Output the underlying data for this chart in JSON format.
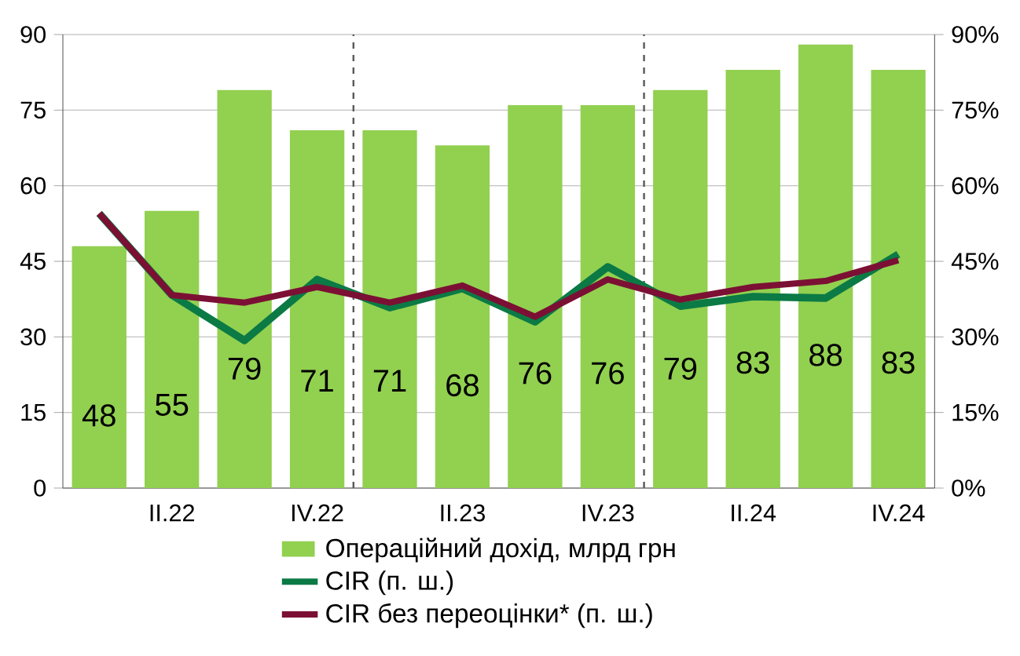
{
  "chart_data": {
    "type": "bar",
    "categories": [
      null,
      "II.22",
      null,
      "IV.22",
      null,
      "II.23",
      null,
      "IV.23",
      null,
      "II.24",
      null,
      "IV.24"
    ],
    "series": [
      {
        "name": "Операційний дохід, млрд грн",
        "color": "#92d050",
        "values": [
          48,
          55,
          79,
          71,
          71,
          68,
          76,
          76,
          79,
          83,
          88,
          83
        ],
        "value_labels": [
          "48",
          "55",
          "79",
          "71",
          "71",
          "68",
          "76",
          "76",
          "79",
          "83",
          "88",
          "83"
        ]
      },
      {
        "name": "CIR (п. ш.)",
        "type": "line",
        "axis": "y2",
        "color": "#0b7a45",
        "values": [
          54.5,
          38.3,
          29.3,
          41.4,
          35.8,
          39.6,
          33,
          43.9,
          36.1,
          38,
          37.7,
          46.4
        ]
      },
      {
        "name": "CIR без переоцінки* (п. ш.)",
        "type": "line",
        "axis": "y2",
        "color": "#7b1034",
        "values": [
          54.5,
          38.3,
          36.8,
          39.9,
          36.8,
          40.2,
          34,
          41.4,
          37.4,
          39.9,
          41.1,
          45.2
        ]
      }
    ],
    "ylim": [
      0,
      90
    ],
    "yticks": [
      0,
      15,
      30,
      45,
      60,
      75,
      90
    ],
    "y2lim": [
      0,
      90
    ],
    "y2ticks": [
      {
        "value": 0,
        "label": "0%"
      },
      {
        "value": 15,
        "label": "15%"
      },
      {
        "value": 30,
        "label": "30%"
      },
      {
        "value": 45,
        "label": "45%"
      },
      {
        "value": 60,
        "label": "60%"
      },
      {
        "value": 75,
        "label": "75%"
      },
      {
        "value": 90,
        "label": "90%"
      }
    ],
    "grid": "y",
    "legend": "bottom",
    "line_style": "solid",
    "marker": "none"
  }
}
